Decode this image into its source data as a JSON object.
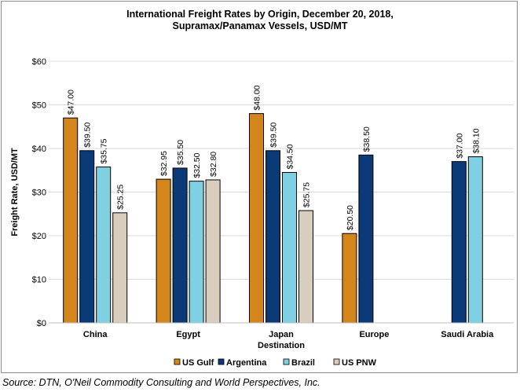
{
  "chart_data": {
    "type": "bar",
    "title": "International Freight Rates by Origin, December 20, 2018,",
    "subtitle": "Supramax/Panamax Vessels, USD/MT",
    "xlabel": "Destination",
    "ylabel": "Freight Rate, USD/MT",
    "ylim": [
      0,
      60
    ],
    "yticks": [
      0,
      10,
      20,
      30,
      40,
      50,
      60
    ],
    "ytick_labels": [
      "$0",
      "$10",
      "$20",
      "$30",
      "$40",
      "$50",
      "$60"
    ],
    "categories": [
      "China",
      "Egypt",
      "Japan",
      "Europe",
      "Saudi Arabia"
    ],
    "grid": true,
    "legend_position": "bottom",
    "series": [
      {
        "name": "US Gulf",
        "color": "#d4861d",
        "values": [
          47.0,
          32.95,
          48.0,
          20.5,
          null
        ],
        "labels": [
          "$47.00",
          "$32.95",
          "$48.00",
          "$20.50",
          null
        ]
      },
      {
        "name": "Argentina",
        "color": "#0b3a78",
        "values": [
          39.5,
          35.5,
          39.5,
          38.5,
          37.0
        ],
        "labels": [
          "$39.50",
          "$35.50",
          "$39.50",
          "$38.50",
          "$37.00"
        ]
      },
      {
        "name": "Brazil",
        "color": "#7fd0e3",
        "values": [
          35.75,
          32.5,
          34.5,
          null,
          38.1
        ],
        "labels": [
          "$35.75",
          "$32.50",
          "$34.50",
          null,
          "$38.10"
        ]
      },
      {
        "name": "US PNW",
        "color": "#d9cebd",
        "values": [
          25.25,
          32.8,
          25.75,
          null,
          null
        ],
        "labels": [
          "$25.25",
          "$32.80",
          "$25.75",
          null,
          null
        ]
      }
    ]
  },
  "source": "Source: DTN, O'Neil Commodity Consulting and World Perspectives, Inc."
}
